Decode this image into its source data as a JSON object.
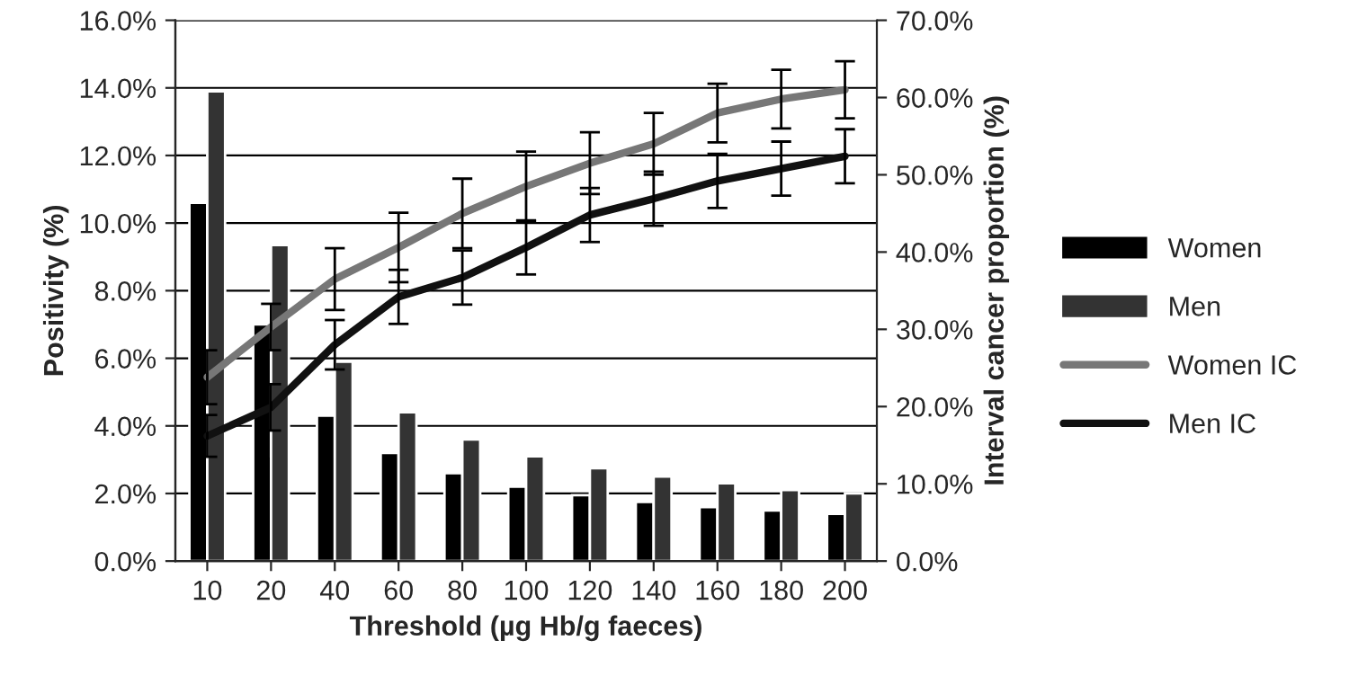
{
  "chart_data": {
    "type": "bar",
    "xlabel": "Threshold (µg Hb/g faeces)",
    "ylabel": "Positivity (%)",
    "y2label": "Interval cancer proportion (%)",
    "categories": [
      "10",
      "20",
      "40",
      "60",
      "80",
      "100",
      "120",
      "140",
      "160",
      "180",
      "200"
    ],
    "series": [
      {
        "name": "Women",
        "color": "#000000",
        "values": [
          10.6,
          7.0,
          4.3,
          3.2,
          2.6,
          2.2,
          1.95,
          1.75,
          1.6,
          1.5,
          1.4
        ]
      },
      {
        "name": "Men",
        "color": "#333333",
        "values": [
          13.9,
          9.35,
          5.9,
          4.4,
          3.6,
          3.1,
          2.75,
          2.5,
          2.3,
          2.1,
          2.0
        ]
      },
      {
        "name": "Women IC",
        "type": "line",
        "axis": "y2",
        "color": "#777777",
        "values": [
          23.8,
          30.3,
          36.5,
          40.6,
          45,
          48.5,
          51.5,
          54,
          58,
          59.8,
          61
        ],
        "errors": [
          3.5,
          3,
          4,
          4.5,
          4.5,
          4.5,
          4,
          4,
          3.8,
          3.8,
          3.7
        ]
      },
      {
        "name": "Men IC",
        "type": "line",
        "axis": "y2",
        "color": "#111111",
        "values": [
          16.2,
          19.9,
          28,
          34.2,
          36.7,
          40.6,
          44.8,
          46.9,
          49.2,
          50.8,
          52.4
        ],
        "errors": [
          2.7,
          3,
          3.2,
          3.5,
          3.5,
          3.5,
          3.5,
          3.5,
          3.5,
          3.5,
          3.5
        ]
      }
    ],
    "ylim": [
      0,
      16
    ],
    "yticks": [
      {
        "value": 0,
        "label": "0.0%"
      },
      {
        "value": 2,
        "label": "2.0%"
      },
      {
        "value": 4,
        "label": "4.0%"
      },
      {
        "value": 6,
        "label": "6.0%"
      },
      {
        "value": 8,
        "label": "8.0%"
      },
      {
        "value": 10,
        "label": "10.0%"
      },
      {
        "value": 12,
        "label": "12.0%"
      },
      {
        "value": 14,
        "label": "14.0%"
      },
      {
        "value": 16,
        "label": "16.0%"
      }
    ],
    "y2lim": [
      0,
      70
    ],
    "y2ticks": [
      {
        "value": 0,
        "label": "0.0%"
      },
      {
        "value": 10,
        "label": "10.0%"
      },
      {
        "value": 20,
        "label": "20.0%"
      },
      {
        "value": 30,
        "label": "30.0%"
      },
      {
        "value": 40,
        "label": "40.0%"
      },
      {
        "value": 50,
        "label": "50.0%"
      },
      {
        "value": 60,
        "label": "60.0%"
      },
      {
        "value": 70,
        "label": "70.0%"
      }
    ],
    "grid": "y",
    "legend": "right"
  }
}
